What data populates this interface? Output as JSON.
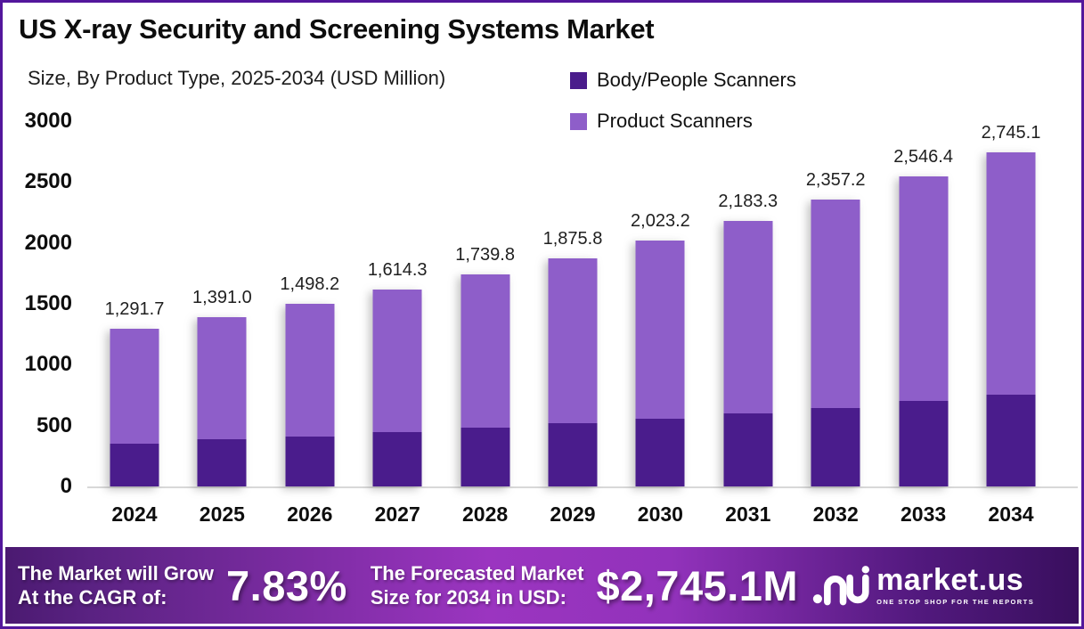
{
  "frame": {
    "border_color": "#53179c",
    "background": "#ffffff"
  },
  "header": {
    "title": "US X-ray Security and Screening Systems Market",
    "subtitle": "Size, By Product Type, 2025-2034 (USD Million)"
  },
  "legend": {
    "position": "top-right",
    "items": [
      {
        "label": "Body/People Scanners",
        "color": "#4a1c8c"
      },
      {
        "label": "Product Scanners",
        "color": "#8e5ec9"
      }
    ]
  },
  "chart_data": {
    "type": "bar",
    "stacked": true,
    "title": "US X-ray Security and Screening Systems Market",
    "subtitle": "Size, By Product Type, 2025-2034 (USD Million)",
    "xlabel": "",
    "ylabel": "",
    "ylim": [
      0,
      3000
    ],
    "yticks": [
      0,
      500,
      1000,
      1500,
      2000,
      2500,
      3000
    ],
    "ytick_labels": [
      "0",
      "500",
      "1000",
      "1500",
      "2000",
      "2500",
      "3000"
    ],
    "grid": false,
    "categories": [
      "2024",
      "2025",
      "2026",
      "2027",
      "2028",
      "2029",
      "2030",
      "2031",
      "2032",
      "2033",
      "2034"
    ],
    "series": [
      {
        "name": "Body/People Scanners",
        "color": "#4a1c8c",
        "values": [
          350.0,
          385.0,
          412.0,
          445.0,
          480.0,
          518.0,
          558.0,
          601.0,
          647.0,
          700.0,
          757.0
        ]
      },
      {
        "name": "Product Scanners",
        "color": "#8e5ec9",
        "values": [
          941.7,
          1006.0,
          1086.2,
          1169.3,
          1259.8,
          1357.8,
          1465.2,
          1582.3,
          1710.2,
          1846.4,
          1988.1
        ]
      }
    ],
    "totals": [
      1291.7,
      1391.0,
      1498.2,
      1614.3,
      1739.8,
      1875.8,
      2023.2,
      2183.3,
      2357.2,
      2546.4,
      2745.1
    ],
    "total_labels": [
      "1,291.7",
      "1,391.0",
      "1,498.2",
      "1,614.3",
      "1,739.8",
      "1,875.8",
      "2,023.2",
      "2,183.3",
      "2,357.2",
      "2,546.4",
      "2,745.1"
    ]
  },
  "footer": {
    "cagr_label_line1": "The Market will Grow",
    "cagr_label_line2": "At the CAGR of:",
    "cagr_value": "7.83%",
    "forecast_label_line1": "The Forecasted Market",
    "forecast_label_line2": "Size for 2034 in USD:",
    "forecast_value": "$2,745.1M",
    "brand": {
      "name": "market.us",
      "tagline": "ONE STOP SHOP FOR THE REPORTS"
    },
    "gradient": [
      "#4b1a71",
      "#9b35c0",
      "#390f5e"
    ]
  }
}
